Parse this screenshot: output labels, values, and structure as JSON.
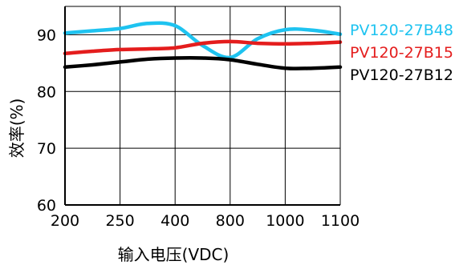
{
  "chart_data": {
    "type": "line",
    "title": "",
    "xlabel": "输入电压(VDC)",
    "ylabel": "效率(%)",
    "categories": [
      "200",
      "250",
      "400",
      "800",
      "1000",
      "1100"
    ],
    "y_ticks": [
      "60",
      "70",
      "80",
      "90"
    ],
    "ylim": [
      60,
      95
    ],
    "grid": "vertical and horizontal gridlines",
    "legend_position": "right",
    "series": [
      {
        "name": "PV120-27B48",
        "color": "#1ec3f0",
        "x": [
          0,
          0.5,
          1,
          1.5,
          2,
          2.5,
          3,
          3.5,
          4,
          4.5,
          5
        ],
        "values": [
          90.3,
          90.7,
          91.1,
          92.0,
          91.6,
          88.1,
          86.0,
          89.3,
          90.9,
          90.8,
          90.1
        ]
      },
      {
        "name": "PV120-27B15",
        "color": "#e41d1d",
        "x": [
          0,
          0.5,
          1,
          1.5,
          2,
          2.5,
          3,
          3.5,
          4,
          4.5,
          5
        ],
        "values": [
          86.7,
          87.1,
          87.4,
          87.5,
          87.7,
          88.5,
          88.8,
          88.5,
          88.4,
          88.5,
          88.7
        ]
      },
      {
        "name": "PV120-27B12",
        "color": "#000000",
        "x": [
          0,
          0.5,
          1,
          1.5,
          2,
          2.5,
          3,
          3.5,
          4,
          4.5,
          5
        ],
        "values": [
          84.3,
          84.7,
          85.2,
          85.7,
          85.9,
          85.9,
          85.6,
          84.8,
          84.1,
          84.1,
          84.3
        ]
      }
    ]
  }
}
